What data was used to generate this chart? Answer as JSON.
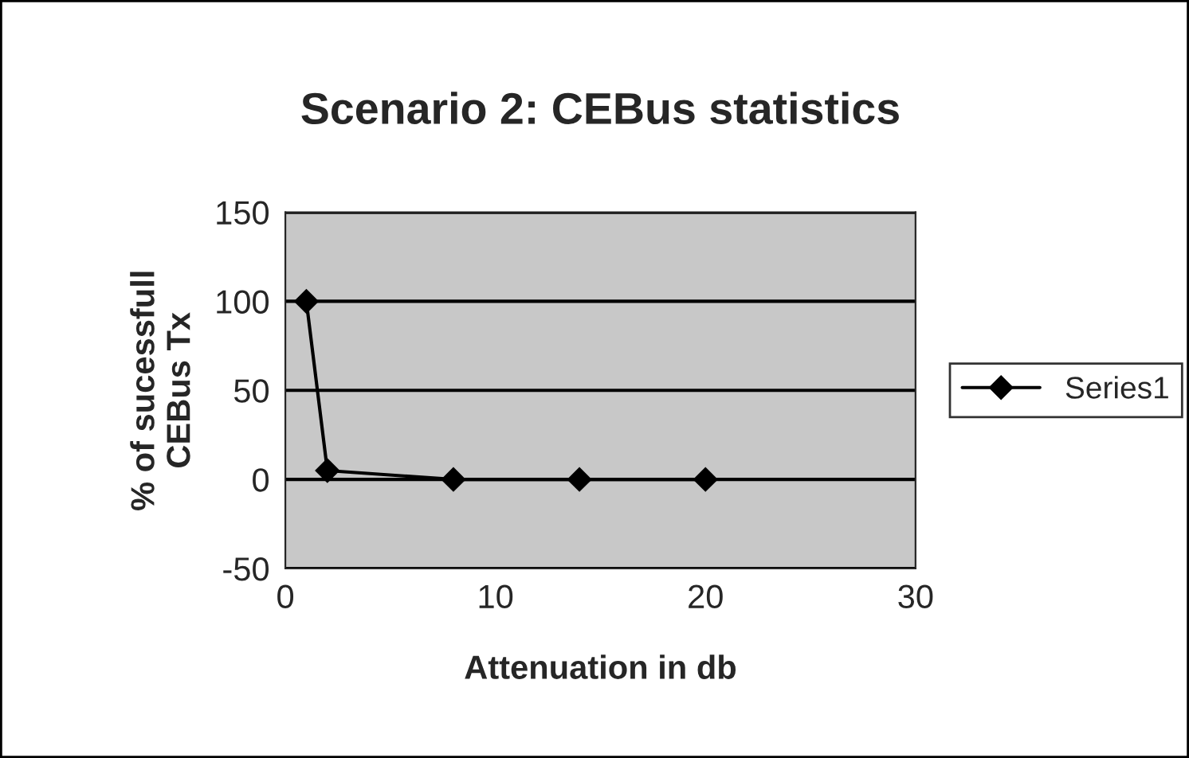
{
  "chart_data": {
    "type": "line",
    "title": "Scenario 2: CEBus statistics",
    "xlabel": "Attenuation in db",
    "ylabel": "% of sucessfull\nCEBus Tx",
    "series": [
      {
        "name": "Series1",
        "color": "#000000",
        "x": [
          1,
          2,
          8,
          14,
          20
        ],
        "values": [
          100,
          5,
          0,
          0,
          0
        ]
      }
    ],
    "xlim": [
      0,
      30
    ],
    "xticks": [
      0,
      10,
      20,
      30
    ],
    "ylim": [
      -50,
      150
    ],
    "yticks": [
      -50,
      0,
      50,
      100,
      150
    ],
    "grid": "y",
    "legend": "right",
    "marker": "diamond",
    "line_style": "solid"
  }
}
